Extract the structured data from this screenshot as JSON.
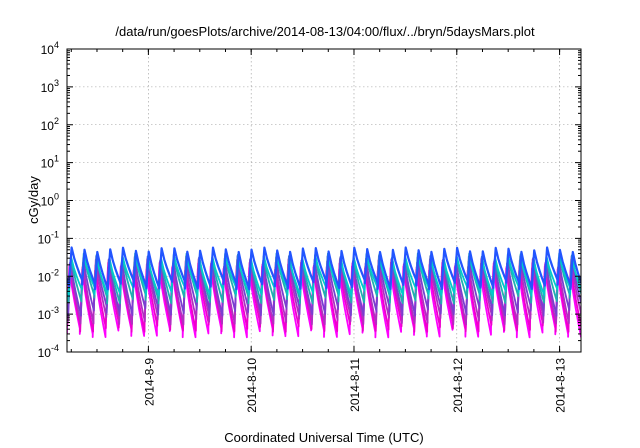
{
  "chart_data": {
    "type": "line",
    "title": "/data/run/goesPlots/archive/2014-08-13/04:00/flux/../bryn/5daysMars.plot",
    "xlabel": "Coordinated Universal Time (UTC)",
    "ylabel": "cGy/day",
    "yscale": "log",
    "ylim": [
      0.0001,
      10000
    ],
    "y_ticks": [
      {
        "value": 0.0001,
        "base": "10",
        "exp": "-4"
      },
      {
        "value": 0.001,
        "base": "10",
        "exp": "-3"
      },
      {
        "value": 0.01,
        "base": "10",
        "exp": "-2"
      },
      {
        "value": 0.1,
        "base": "10",
        "exp": "-1"
      },
      {
        "value": 1,
        "base": "10",
        "exp": "0"
      },
      {
        "value": 10,
        "base": "10",
        "exp": "1"
      },
      {
        "value": 100,
        "base": "10",
        "exp": "2"
      },
      {
        "value": 1000,
        "base": "10",
        "exp": "3"
      },
      {
        "value": 10000,
        "base": "10",
        "exp": "4"
      }
    ],
    "xlim": [
      "2014-08-08 05:00",
      "2014-08-13 05:00"
    ],
    "x_ticks": [
      "2014-8-9",
      "2014-8-10",
      "2014-8-11",
      "2014-8-12",
      "2014-8-13"
    ],
    "grid": true,
    "legend": "none",
    "sawtooth_period_hours": 3,
    "series": [
      {
        "color": "#ff00ff",
        "peak": 0.016,
        "trough": 0.00032
      },
      {
        "color": "#ee00cc",
        "peak": 0.02,
        "trough": 0.00045
      },
      {
        "color": "#b030c0",
        "peak": 0.025,
        "trough": 0.0007
      },
      {
        "color": "#7a3fd0",
        "peak": 0.03,
        "trough": 0.0012
      },
      {
        "color": "#20b0b0",
        "peak": 0.035,
        "trough": 0.0025
      },
      {
        "color": "#00cccc",
        "peak": 0.03,
        "trough": 0.004
      },
      {
        "color": "#2255ff",
        "peak": 0.05,
        "trough": 0.006
      }
    ]
  }
}
